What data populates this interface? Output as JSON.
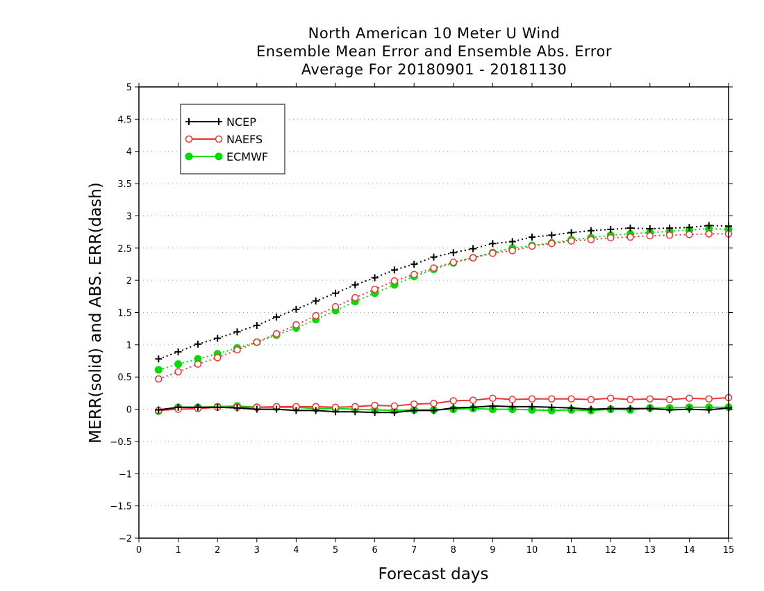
{
  "chart_data": {
    "type": "line",
    "title": [
      "North American 10 Meter U Wind",
      "Ensemble Mean Error and Ensemble Abs. Error",
      "Average For 20180901 - 20181130"
    ],
    "xlabel": "Forecast days",
    "ylabel": "MERR(solid) and ABS. ERR(dash)",
    "xlim": [
      0,
      15
    ],
    "ylim": [
      -2,
      5
    ],
    "xticks": [
      "0",
      "1",
      "2",
      "3",
      "4",
      "5",
      "6",
      "7",
      "8",
      "9",
      "10",
      "11",
      "12",
      "13",
      "14",
      "15"
    ],
    "yticks": [
      "−2",
      "−1.5",
      "−1",
      "−0.5",
      "0",
      "0.5",
      "1",
      "1.5",
      "2",
      "2.5",
      "3",
      "3.5",
      "4",
      "4.5",
      "5"
    ],
    "grid": "horizontal dotted",
    "legend_position": "top-left",
    "x": [
      0.5,
      1,
      1.5,
      2,
      2.5,
      3,
      3.5,
      4,
      4.5,
      5,
      5.5,
      6,
      6.5,
      7,
      7.5,
      8,
      8.5,
      9,
      9.5,
      10,
      10.5,
      11,
      11.5,
      12,
      12.5,
      13,
      13.5,
      14,
      14.5,
      15
    ],
    "series": [
      {
        "name": "NCEP",
        "color": "#000000",
        "marker": "plus",
        "abs_err": [
          0.78,
          0.89,
          1.01,
          1.1,
          1.2,
          1.3,
          1.43,
          1.55,
          1.68,
          1.8,
          1.93,
          2.04,
          2.16,
          2.25,
          2.36,
          2.43,
          2.49,
          2.57,
          2.6,
          2.67,
          2.7,
          2.74,
          2.77,
          2.79,
          2.81,
          2.8,
          2.81,
          2.82,
          2.85,
          2.84
        ],
        "mean_err": [
          -0.01,
          0.03,
          0.03,
          0.03,
          0.02,
          0.0,
          0.0,
          -0.02,
          -0.02,
          -0.04,
          -0.04,
          -0.05,
          -0.05,
          -0.02,
          -0.02,
          0.02,
          0.03,
          0.05,
          0.04,
          0.04,
          0.03,
          0.02,
          0.0,
          0.01,
          0.01,
          0.01,
          -0.01,
          0.0,
          -0.01,
          0.02
        ]
      },
      {
        "name": "NAEFS",
        "color": "#ee3333",
        "marker": "open-circle",
        "abs_err": [
          0.47,
          0.58,
          0.7,
          0.8,
          0.92,
          1.04,
          1.17,
          1.31,
          1.45,
          1.59,
          1.73,
          1.86,
          1.99,
          2.09,
          2.19,
          2.28,
          2.35,
          2.42,
          2.46,
          2.53,
          2.57,
          2.61,
          2.63,
          2.66,
          2.67,
          2.69,
          2.7,
          2.71,
          2.72,
          2.72
        ],
        "mean_err": [
          -0.02,
          0.0,
          0.01,
          0.03,
          0.03,
          0.03,
          0.04,
          0.04,
          0.04,
          0.03,
          0.04,
          0.06,
          0.05,
          0.08,
          0.09,
          0.13,
          0.14,
          0.17,
          0.15,
          0.16,
          0.16,
          0.16,
          0.15,
          0.17,
          0.15,
          0.16,
          0.15,
          0.17,
          0.16,
          0.18
        ]
      },
      {
        "name": "ECMWF",
        "color": "#00dd00",
        "marker": "filled-circle",
        "abs_err": [
          0.61,
          0.7,
          0.78,
          0.86,
          0.95,
          1.04,
          1.15,
          1.26,
          1.39,
          1.53,
          1.67,
          1.8,
          1.93,
          2.06,
          2.17,
          2.27,
          2.35,
          2.43,
          2.5,
          2.54,
          2.58,
          2.63,
          2.66,
          2.7,
          2.72,
          2.74,
          2.76,
          2.78,
          2.8,
          2.79
        ],
        "mean_err": [
          -0.03,
          0.03,
          0.03,
          0.04,
          0.05,
          0.03,
          0.03,
          0.03,
          0.01,
          0.01,
          0.0,
          -0.01,
          -0.02,
          -0.01,
          -0.01,
          0.0,
          0.01,
          0.0,
          0.0,
          -0.01,
          -0.02,
          -0.01,
          -0.02,
          0.0,
          -0.01,
          0.02,
          0.02,
          0.03,
          0.03,
          0.03
        ]
      }
    ]
  }
}
